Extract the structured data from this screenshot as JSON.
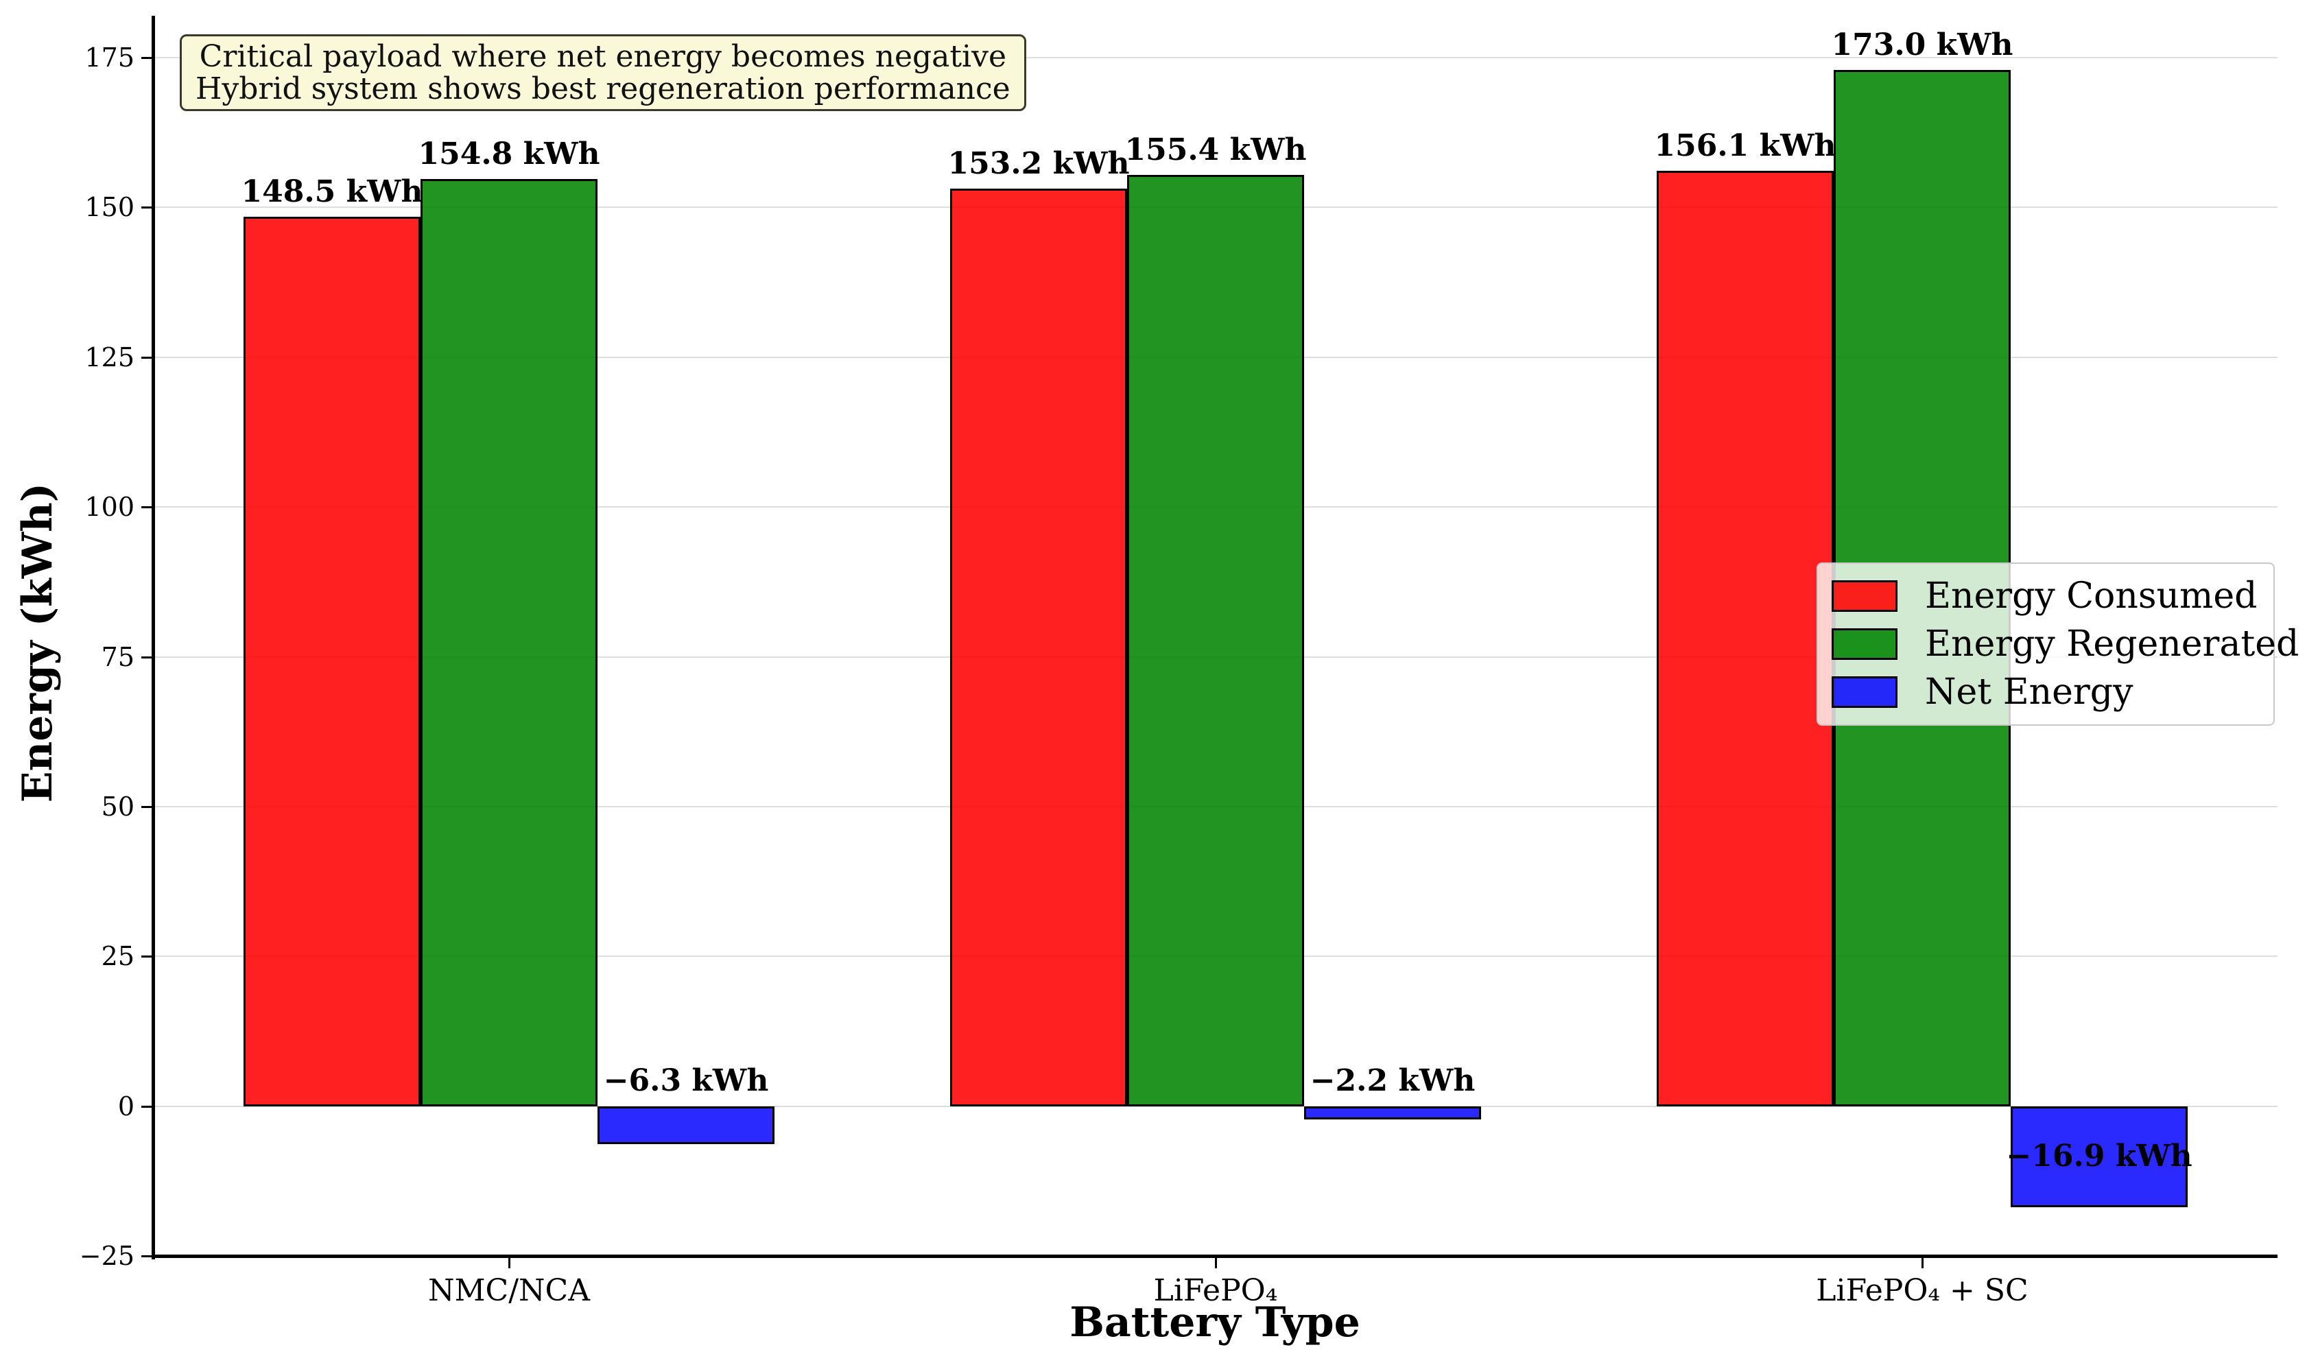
{
  "chart_data": {
    "type": "bar",
    "title": "",
    "xlabel": "Battery Type",
    "ylabel": "Energy (kWh)",
    "categories": [
      "NMC/NCA",
      "LiFePO₄",
      "LiFePO₄ + SC"
    ],
    "series": [
      {
        "name": "Energy Consumed",
        "color": "rgba(255,0,0,0.87)",
        "values": [
          148.5,
          153.2,
          156.1
        ],
        "labels": [
          "148.5 kWh",
          "153.2 kWh",
          "156.1 kWh"
        ]
      },
      {
        "name": "Energy Regenerated",
        "color": "rgba(0,132,0,0.87)",
        "values": [
          154.8,
          155.4,
          173.0
        ],
        "labels": [
          "154.8 kWh",
          "155.4 kWh",
          "173.0 kWh"
        ]
      },
      {
        "name": "Net Energy",
        "color": "rgba(10,10,255,0.87)",
        "values": [
          -6.3,
          -2.2,
          -16.9
        ],
        "labels": [
          "−6.3 kWh",
          "−2.2 kWh",
          "−16.9 kWh"
        ]
      }
    ],
    "yticks": [
      {
        "value": -25,
        "label": "−25"
      },
      {
        "value": 0,
        "label": "0"
      },
      {
        "value": 25,
        "label": "25"
      },
      {
        "value": 50,
        "label": "50"
      },
      {
        "value": 75,
        "label": "75"
      },
      {
        "value": 100,
        "label": "100"
      },
      {
        "value": 125,
        "label": "125"
      },
      {
        "value": 150,
        "label": "150"
      },
      {
        "value": 175,
        "label": "175"
      }
    ],
    "ylim": [
      -25,
      182
    ],
    "grid": true,
    "grid_color": "#dedede",
    "bar_edge_color": "#000000",
    "legend_position": "center right",
    "annotation": "Critical payload where net energy becomes negative\nHybrid system shows best regeneration performance"
  },
  "annotation": {
    "line1": "Critical payload where net energy becomes negative",
    "line2": "Hybrid system shows best regeneration performance",
    "background": "#f9f9da"
  }
}
